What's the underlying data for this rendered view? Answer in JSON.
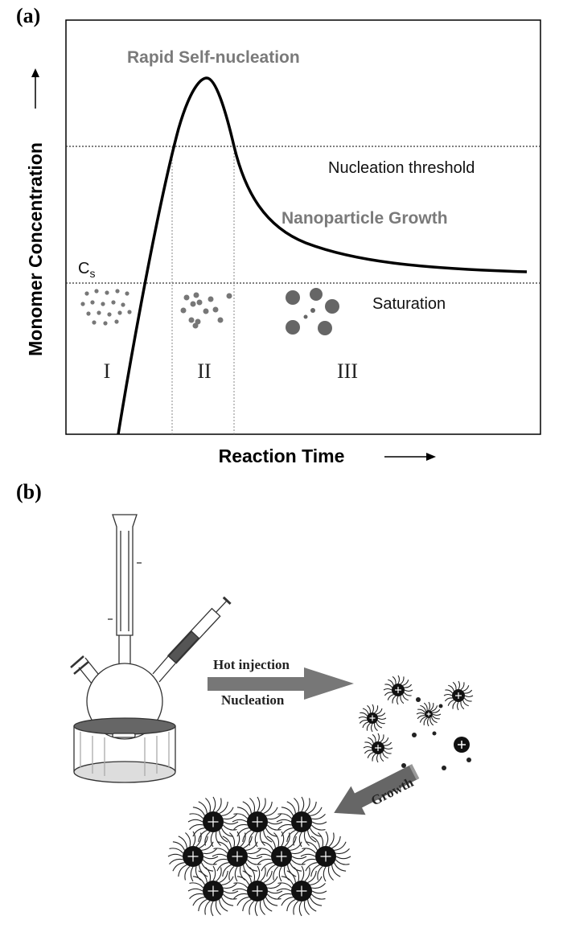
{
  "panel_a": {
    "label": "(a)",
    "peak_label": "Rapid Self-nucleation",
    "y_axis_title": "Monomer Concentration",
    "threshold_label": "Nucleation threshold",
    "growth_label": "Nanoparticle Growth",
    "cs_label": {
      "main": "C",
      "sub": "s"
    },
    "saturation_label": "Saturation",
    "stages": [
      "I",
      "II",
      "III"
    ],
    "x_axis_title": "Reaction Time"
  },
  "panel_b": {
    "label": "(b)",
    "arrow_top": "Hot injection",
    "arrow_bottom": "Nucleation",
    "growth_arrow": "Growth"
  }
}
